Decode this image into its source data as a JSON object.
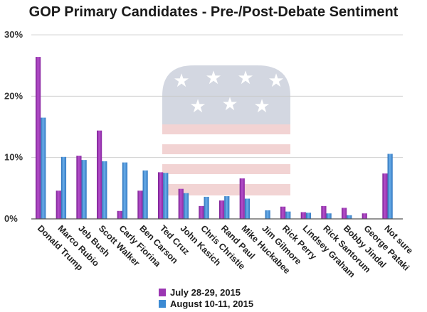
{
  "chart_data": {
    "type": "bar",
    "title": "GOP Primary Candidates - Pre-/Post-Debate Sentiment",
    "categories": [
      "Donald Trump",
      "Marco Rubio",
      "Jeb Bush",
      "Scott Walker",
      "Carly Fiorina",
      "Ben Carson",
      "Ted Cruz",
      "John Kasich",
      "Chris Christie",
      "Rand Paul",
      "Mike Huckabee",
      "Jim Gilmore",
      "Rick Perry",
      "Lindsey Graham",
      "Rick Santorum",
      "Bobby Jindal",
      "George Pataki",
      "Not sure"
    ],
    "series": [
      {
        "name": "July 28-29, 2015",
        "color": "#9b36b2",
        "values": [
          26.4,
          4.6,
          10.3,
          14.4,
          1.3,
          4.6,
          7.6,
          4.9,
          2.1,
          3.0,
          6.6,
          0.0,
          2.0,
          1.1,
          2.1,
          1.8,
          0.9,
          7.4
        ]
      },
      {
        "name": "August 10-11, 2015",
        "color": "#3c8ad3",
        "values": [
          16.5,
          10.1,
          9.6,
          9.4,
          9.2,
          7.9,
          7.5,
          4.2,
          3.6,
          3.7,
          3.3,
          1.4,
          1.2,
          1.0,
          0.9,
          0.6,
          0.0,
          10.6
        ]
      }
    ],
    "yticks": [
      "0%",
      "10%",
      "20%",
      "30%"
    ],
    "ylim": [
      0,
      30
    ],
    "grid": true,
    "legend_position": "bottom-center"
  },
  "decoration": {
    "watermark": "gop-elephant-flag-watermark"
  }
}
